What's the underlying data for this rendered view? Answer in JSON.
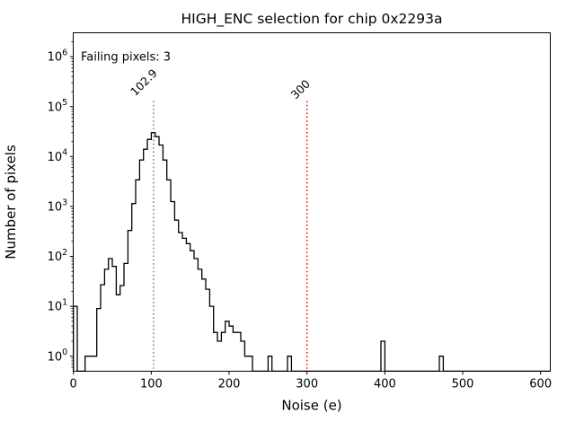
{
  "title": "HIGH_ENC selection for chip 0x2293a",
  "axes": {
    "xlabel": "Noise (e)",
    "ylabel": "Number of pixels",
    "x_ticks": [
      0,
      100,
      200,
      300,
      400,
      500,
      600
    ],
    "y_tick_exponents": [
      0,
      1,
      2,
      3,
      4,
      5,
      6
    ],
    "xlim": [
      0,
      612
    ],
    "ylim_log": [
      0.5,
      2950000
    ]
  },
  "annotations": {
    "failing_text": "Failing pixels: 3",
    "failing_count": 3,
    "mean_line": {
      "value": 102.9,
      "label": "102.9",
      "color": "#7f7f7f",
      "style": "dotted"
    },
    "cut_line": {
      "value": 300,
      "label": "300",
      "color": "#ff0000",
      "style": "dotted"
    }
  },
  "colors": {
    "histogram": "#000000",
    "frame": "#000000",
    "failing_text": "#ff0000",
    "background": "#ffffff"
  },
  "chart_data": {
    "type": "bar",
    "subtype": "step_histogram",
    "y_scale": "log",
    "title": "HIGH_ENC selection for chip 0x2293a",
    "xlabel": "Noise (e)",
    "ylabel": "Number of pixels",
    "xlim": [
      0,
      612
    ],
    "ylim": [
      0.5,
      2950000
    ],
    "grid": false,
    "legend": false,
    "bin_width": 5,
    "bins": [
      [
        0,
        10
      ],
      [
        15,
        1
      ],
      [
        20,
        1
      ],
      [
        25,
        1
      ],
      [
        30,
        9
      ],
      [
        35,
        27
      ],
      [
        40,
        55
      ],
      [
        45,
        90
      ],
      [
        50,
        63
      ],
      [
        55,
        17
      ],
      [
        60,
        26
      ],
      [
        65,
        72
      ],
      [
        70,
        330
      ],
      [
        75,
        1140
      ],
      [
        80,
        3400
      ],
      [
        85,
        8500
      ],
      [
        90,
        14000
      ],
      [
        95,
        22000
      ],
      [
        100,
        30000
      ],
      [
        105,
        25000
      ],
      [
        110,
        17000
      ],
      [
        115,
        8500
      ],
      [
        120,
        3400
      ],
      [
        125,
        1250
      ],
      [
        130,
        530
      ],
      [
        135,
        300
      ],
      [
        140,
        230
      ],
      [
        145,
        180
      ],
      [
        150,
        130
      ],
      [
        155,
        90
      ],
      [
        160,
        55
      ],
      [
        165,
        35
      ],
      [
        170,
        22
      ],
      [
        175,
        10
      ],
      [
        180,
        3
      ],
      [
        185,
        2
      ],
      [
        190,
        3
      ],
      [
        195,
        5
      ],
      [
        200,
        4
      ],
      [
        205,
        3
      ],
      [
        210,
        3
      ],
      [
        215,
        2
      ],
      [
        220,
        1
      ],
      [
        225,
        1
      ],
      [
        250,
        1
      ],
      [
        275,
        1
      ],
      [
        395,
        2
      ],
      [
        470,
        1
      ]
    ]
  }
}
